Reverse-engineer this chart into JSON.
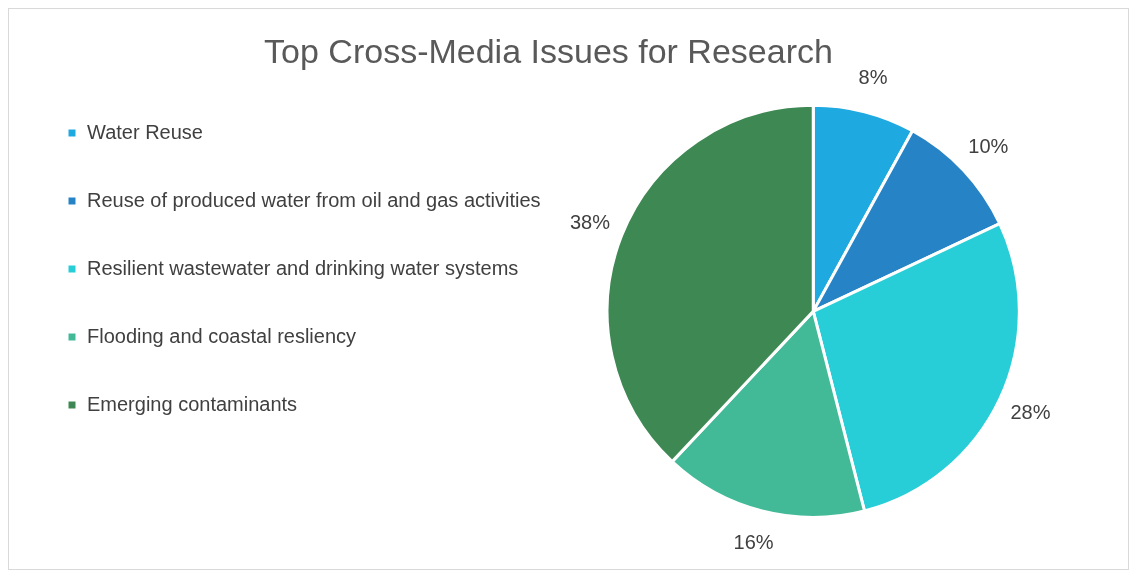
{
  "chart_data": {
    "type": "pie",
    "title": "Top Cross-Media Issues for Research",
    "categories": [
      "Water Reuse",
      "Reuse of produced water from oil and gas activities",
      "Resilient wastewater and drinking water systems",
      "Flooding and coastal resliency",
      "Emerging contaminants"
    ],
    "values": [
      8,
      10,
      28,
      16,
      38
    ],
    "value_labels": [
      "8%",
      "10%",
      "28%",
      "16%",
      "38%"
    ],
    "colors": [
      "#1ea9e1",
      "#2683c6",
      "#27ced7",
      "#42ba97",
      "#3e8853"
    ],
    "legend": "left"
  }
}
